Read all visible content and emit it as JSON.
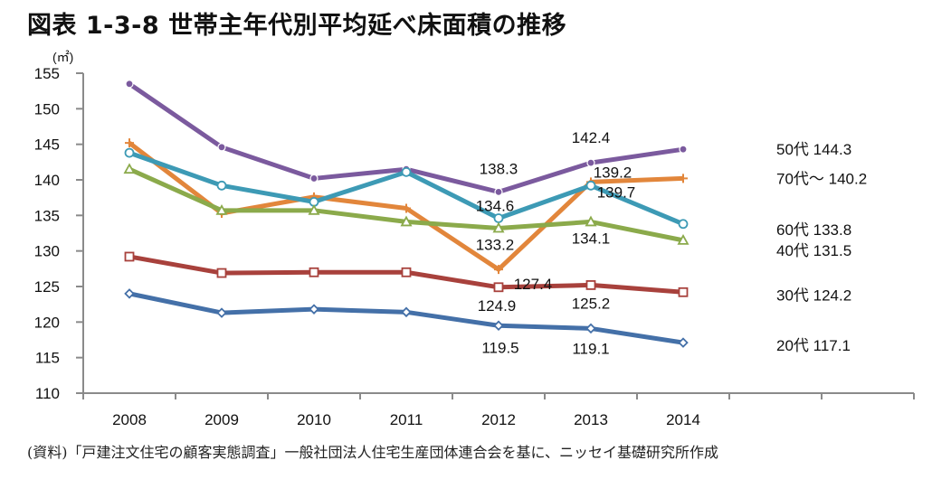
{
  "title": "図表 1-3-8  世帯主年代別平均延べ床面積の推移",
  "source": "(資料)「戸建注文住宅の顧客実態調査」一般社団法人住宅生産団体連合会を基に、ニッセイ基礎研究所作成",
  "chart_data": {
    "type": "line",
    "title": "世帯主年代別平均延べ床面積の推移",
    "xlabel": "",
    "ylabel": "(㎡)",
    "ylim": [
      110,
      155
    ],
    "yticks": [
      110,
      115,
      120,
      125,
      130,
      135,
      140,
      145,
      150,
      155
    ],
    "categories": [
      "2008",
      "2009",
      "2010",
      "2011",
      "2012",
      "2013",
      "2014"
    ],
    "x_slots": 9,
    "grid": false,
    "legend": "right-end labels",
    "series": [
      {
        "name": "50代",
        "color": "#7B5A9E",
        "marker": "dot",
        "values": [
          153.5,
          144.6,
          140.2,
          141.5,
          138.3,
          142.4,
          144.3
        ],
        "labels": [
          null,
          null,
          null,
          null,
          "138.3",
          "142.4",
          null
        ],
        "end_label": "50代 144.3"
      },
      {
        "name": "70代〜",
        "color": "#E2863B",
        "marker": "plus",
        "values": [
          145.2,
          135.3,
          137.6,
          136.0,
          127.4,
          139.7,
          140.2
        ],
        "labels": [
          null,
          null,
          null,
          null,
          "127.4",
          "139.7",
          null
        ],
        "end_label": "70代〜 140.2"
      },
      {
        "name": "60代",
        "color": "#3D9AB5",
        "marker": "circle",
        "values": [
          143.8,
          139.2,
          136.9,
          141.1,
          134.6,
          139.2,
          133.8
        ],
        "labels": [
          null,
          null,
          null,
          null,
          "134.6",
          "139.2",
          null
        ],
        "end_label": "60代 133.8"
      },
      {
        "name": "40代",
        "color": "#8BAA4B",
        "marker": "triangle",
        "values": [
          141.5,
          135.7,
          135.7,
          134.1,
          133.2,
          134.1,
          131.5
        ],
        "labels": [
          null,
          null,
          null,
          null,
          "133.2",
          "134.1",
          null
        ],
        "end_label": "40代 131.5"
      },
      {
        "name": "30代",
        "color": "#A8413C",
        "marker": "square",
        "values": [
          129.2,
          126.9,
          127.0,
          127.0,
          124.9,
          125.2,
          124.2
        ],
        "labels": [
          null,
          null,
          null,
          null,
          "124.9",
          "125.2",
          null
        ],
        "end_label": "30代 124.2"
      },
      {
        "name": "20代",
        "color": "#4470A8",
        "marker": "diamond",
        "values": [
          124.0,
          121.3,
          121.8,
          121.4,
          119.5,
          119.1,
          117.1
        ],
        "labels": [
          null,
          null,
          null,
          null,
          "119.5",
          "119.1",
          null
        ],
        "end_label": "20代 117.1"
      }
    ]
  }
}
